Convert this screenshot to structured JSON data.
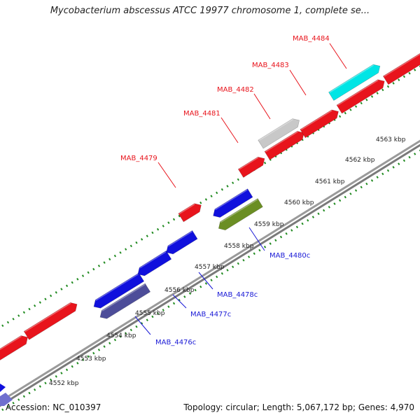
{
  "title": "Mycobacterium abscessus ATCC 19977 chromosome 1, complete se...",
  "footer": {
    "accession": "Accession: NC_010397",
    "stats": "Topology: circular; Length: 5,067,172 bp; Genes: 4,970"
  },
  "scale_ticks": [
    {
      "label": "4552 kbp",
      "kbp": 4552
    },
    {
      "label": "4553 kbp",
      "kbp": 4553
    },
    {
      "label": "4554 kbp",
      "kbp": 4554
    },
    {
      "label": "4555 kbp",
      "kbp": 4555
    },
    {
      "label": "4556 kbp",
      "kbp": 4556
    },
    {
      "label": "4557 kbp",
      "kbp": 4557
    },
    {
      "label": "4558 kbp",
      "kbp": 4558
    },
    {
      "label": "4559 kbp",
      "kbp": 4559
    },
    {
      "label": "4560 kbp",
      "kbp": 4560
    },
    {
      "label": "4561 kbp",
      "kbp": 4561
    },
    {
      "label": "4562 kbp",
      "kbp": 4562
    },
    {
      "label": "4563 kbp",
      "kbp": 4563
    }
  ],
  "labeled_genes": [
    {
      "name": "MAB_4476c",
      "strand": "reverse",
      "color": "#4d4d99"
    },
    {
      "name": "MAB_4477c",
      "strand": "reverse",
      "color": "#1010dd"
    },
    {
      "name": "MAB_4478c",
      "strand": "reverse",
      "color": "#1010dd"
    },
    {
      "name": "MAB_4479",
      "strand": "forward",
      "color": "#e8141c"
    },
    {
      "name": "MAB_4480c",
      "strand": "reverse",
      "color": "#6b8e23"
    },
    {
      "name": "MAB_4481",
      "strand": "forward",
      "color": "#e8141c"
    },
    {
      "name": "MAB_4482",
      "strand": "forward",
      "color": "#c8c8c8"
    },
    {
      "name": "MAB_4483",
      "strand": "forward",
      "color": "#e8141c"
    },
    {
      "name": "MAB_4484",
      "strand": "forward",
      "color": "#00e5e5"
    }
  ],
  "colors": {
    "forward_label": "#e8141c",
    "reverse_label": "#1a1ad6",
    "backbone": "#8c8c8c",
    "tick_dots": "#228b22"
  }
}
